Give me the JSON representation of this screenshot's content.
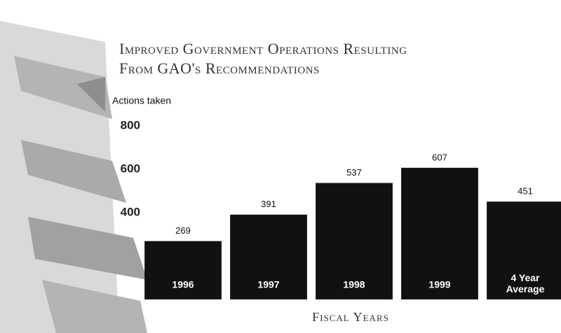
{
  "chart_data": {
    "type": "bar",
    "title": "Improved Government Operations Resulting",
    "subtitle": "From GAO's Recommendations",
    "y_label": "Actions taken",
    "x_label": "Fiscal Years",
    "categories": [
      "1996",
      "1997",
      "1998",
      "1999",
      "4 Year Average"
    ],
    "values": [
      269,
      391,
      537,
      607,
      451
    ],
    "color": "#111111",
    "ylim": [
      0,
      800
    ],
    "yticks": [
      400,
      600,
      800
    ],
    "grid": false
  }
}
